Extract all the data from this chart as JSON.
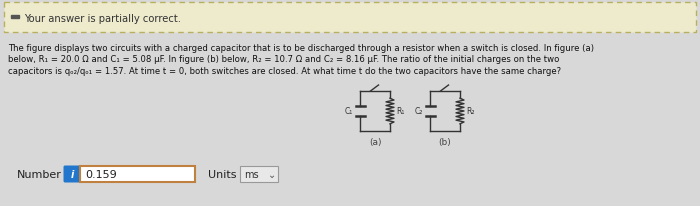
{
  "banner_text": "Your answer is partially correct.",
  "banner_bg": "#eeebcd",
  "banner_border": "#b8b060",
  "body_bg": "#d8d8d8",
  "main_text_lines": [
    "The figure displays two circuits with a charged capacitor that is to be discharged through a resistor when a switch is closed. In figure (a)",
    "below, R₁ = 20.0 Ω and C₁ = 5.08 μF. In figure (b) below, R₂ = 10.7 Ω and C₂ = 8.16 μF. The ratio of the initial charges on the two",
    "capacitors is qₒ₂/qₒ₁ = 1.57. At time t = 0, both switches are closed. At what time t do the two capacitors have the same charge?"
  ],
  "number_label": "Number",
  "number_value": "0.159",
  "units_label": "Units",
  "units_value": "ms",
  "circuit_a_label": "(a)",
  "circuit_b_label": "(b)",
  "fig_width": 7.0,
  "fig_height": 2.07,
  "dpi": 100
}
